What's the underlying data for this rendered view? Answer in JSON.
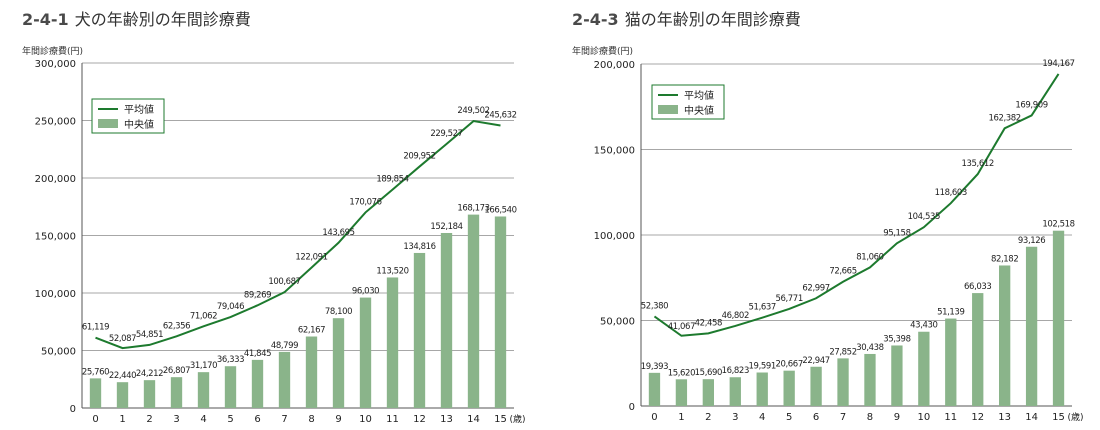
{
  "chart_data": [
    {
      "type": "bar",
      "figure_number": "2-4-1",
      "title": "犬の年齢別の年間診療費",
      "ylabel": "年間診療費(円)",
      "xlabel": "(歳)",
      "categories": [
        "0",
        "1",
        "2",
        "3",
        "4",
        "5",
        "6",
        "7",
        "8",
        "9",
        "10",
        "11",
        "12",
        "13",
        "14",
        "15"
      ],
      "ylim": [
        0,
        300000
      ],
      "yticks": [
        0,
        50000,
        100000,
        150000,
        200000,
        250000,
        300000
      ],
      "ytick_labels": [
        "0",
        "50,000",
        "100,000",
        "150,000",
        "200,000",
        "250,000",
        "300,000"
      ],
      "legend_position": "top-left",
      "series": [
        {
          "name": "平均値",
          "kind": "line",
          "color": "#1d7a2e",
          "values": [
            61119,
            52087,
            54851,
            62356,
            71062,
            79046,
            89269,
            100687,
            122091,
            143695,
            170076,
            189854,
            209952,
            229527,
            249502,
            245632
          ],
          "labels": [
            "61,119",
            "52,087",
            "54,851",
            "62,356",
            "71,062",
            "79,046",
            "89,269",
            "100,687",
            "122,091",
            "143,695",
            "170,076",
            "189,854",
            "209,952",
            "229,527",
            "249,502",
            "245,632"
          ]
        },
        {
          "name": "中央値",
          "kind": "bar",
          "color": "#8ab48a",
          "values": [
            25760,
            22440,
            24212,
            26807,
            31170,
            36333,
            41845,
            48799,
            62167,
            78100,
            96030,
            113520,
            134816,
            152184,
            168173,
            166540
          ],
          "labels": [
            "25,760",
            "22,440",
            "24,212",
            "26,807",
            "31,170",
            "36,333",
            "41,845",
            "48,799",
            "62,167",
            "78,100",
            "96,030",
            "113,520",
            "134,816",
            "152,184",
            "168,173",
            "166,540"
          ]
        }
      ],
      "grid": true
    },
    {
      "type": "bar",
      "figure_number": "2-4-3",
      "title": "猫の年齢別の年間診療費",
      "ylabel": "年間診療費(円)",
      "xlabel": "(歳)",
      "categories": [
        "0",
        "1",
        "2",
        "3",
        "4",
        "5",
        "6",
        "7",
        "8",
        "9",
        "10",
        "11",
        "12",
        "13",
        "14",
        "15"
      ],
      "ylim": [
        0,
        200000
      ],
      "yticks": [
        0,
        50000,
        100000,
        150000,
        200000
      ],
      "ytick_labels": [
        "0",
        "50,000",
        "100,000",
        "150,000",
        "200,000"
      ],
      "legend_position": "top-left",
      "series": [
        {
          "name": "平均値",
          "kind": "line",
          "color": "#1d7a2e",
          "values": [
            52380,
            41067,
            42458,
            46802,
            51637,
            56771,
            62997,
            72665,
            81060,
            95158,
            104535,
            118603,
            135612,
            162382,
            169909,
            194167
          ],
          "labels": [
            "52,380",
            "41,067",
            "42,458",
            "46,802",
            "51,637",
            "56,771",
            "62,997",
            "72,665",
            "81,060",
            "95,158",
            "104,535",
            "118,603",
            "135,612",
            "162,382",
            "169,909",
            "194,167"
          ]
        },
        {
          "name": "中央値",
          "kind": "bar",
          "color": "#8ab48a",
          "values": [
            19393,
            15620,
            15690,
            16823,
            19591,
            20667,
            22947,
            27852,
            30438,
            35398,
            43430,
            51139,
            66033,
            82182,
            93126,
            102518
          ],
          "labels": [
            "19,393",
            "15,620",
            "15,690",
            "16,823",
            "19,591",
            "20,667",
            "22,947",
            "27,852",
            "30,438",
            "35,398",
            "43,430",
            "51,139",
            "66,033",
            "82,182",
            "93,126",
            "102,518"
          ]
        }
      ],
      "grid": true
    }
  ]
}
